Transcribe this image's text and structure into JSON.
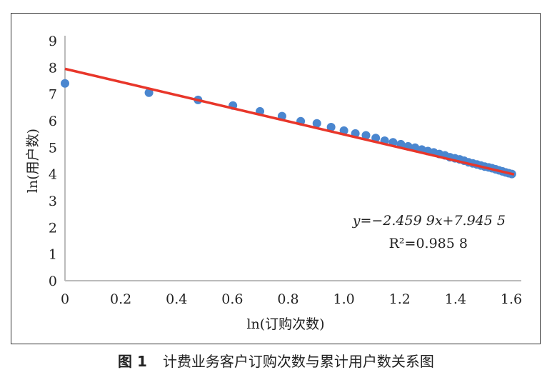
{
  "chart_data": {
    "type": "scatter",
    "xlabel": "ln(订购次数)",
    "ylabel": "ln(用户数)",
    "xlim": [
      0,
      1.6
    ],
    "ylim": [
      0,
      9
    ],
    "xticks": [
      "0",
      "0.2",
      "0.4",
      "0.6",
      "0.8",
      "1.0",
      "1.2",
      "1.4",
      "1.6"
    ],
    "yticks": [
      "0",
      "1",
      "2",
      "3",
      "4",
      "5",
      "6",
      "7",
      "8",
      "9"
    ],
    "grid": false,
    "series": [
      {
        "name": "data",
        "color": "#4a86cf",
        "x": [
          0,
          0.301,
          0.477,
          0.602,
          0.699,
          0.778,
          0.845,
          0.903,
          0.954,
          1.0,
          1.041,
          1.079,
          1.114,
          1.146,
          1.176,
          1.204,
          1.23,
          1.255,
          1.279,
          1.301,
          1.322,
          1.342,
          1.362,
          1.38,
          1.398,
          1.415,
          1.431,
          1.447,
          1.462,
          1.477,
          1.491,
          1.505,
          1.519,
          1.531,
          1.544,
          1.556,
          1.568,
          1.58,
          1.591,
          1.602
        ],
        "y": [
          7.4,
          7.05,
          6.78,
          6.57,
          6.35,
          6.17,
          5.98,
          5.9,
          5.76,
          5.63,
          5.52,
          5.45,
          5.35,
          5.25,
          5.19,
          5.12,
          5.04,
          4.99,
          4.92,
          4.86,
          4.81,
          4.75,
          4.7,
          4.63,
          4.59,
          4.55,
          4.5,
          4.44,
          4.4,
          4.36,
          4.32,
          4.28,
          4.25,
          4.22,
          4.18,
          4.14,
          4.1,
          4.06,
          4.03,
          4.0
        ]
      }
    ],
    "trendline": {
      "slope": -2.4599,
      "intercept": 7.9455,
      "r2": 0.9858,
      "color": "#e8362a"
    },
    "annotations": {
      "equation": "y=−2.459 9x+7.945 5",
      "r2_label": "R²=0.985 8"
    }
  },
  "caption": {
    "figure_no": "图 1",
    "title": "计费业务客户订购次数与累计用户数关系图"
  }
}
